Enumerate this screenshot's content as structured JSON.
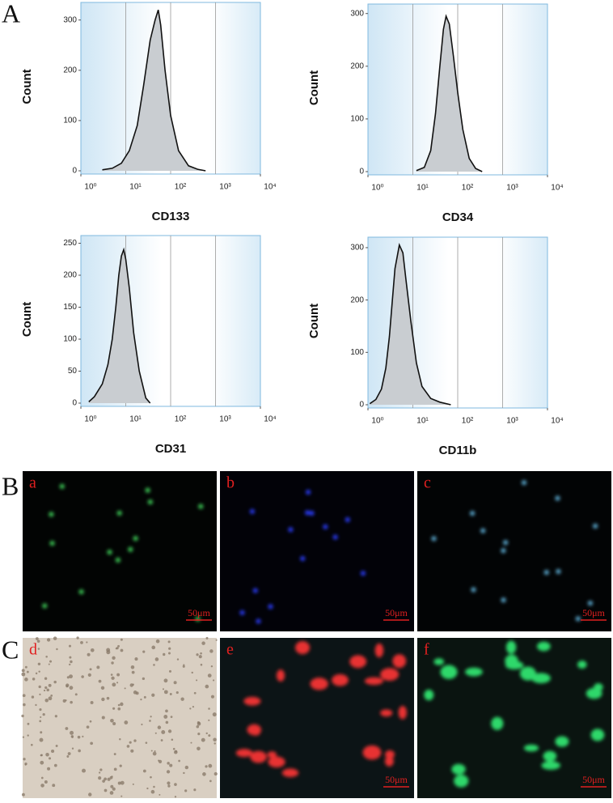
{
  "chart_data": [
    {
      "type": "area",
      "xlabel": "CD133",
      "ylabel": "Count",
      "log_x": true,
      "color": "#c9cdd1",
      "x": [
        3,
        5,
        8,
        12,
        18,
        25,
        35,
        45,
        53,
        60,
        75,
        100,
        150,
        250,
        400,
        600
      ],
      "values": [
        2,
        5,
        15,
        40,
        90,
        170,
        260,
        300,
        320,
        290,
        200,
        110,
        40,
        10,
        3,
        0
      ],
      "xlim": [
        1,
        10000
      ],
      "xticks": [
        {
          "value": 1,
          "label": "10⁰"
        },
        {
          "value": 10,
          "label": "10¹"
        },
        {
          "value": 100,
          "label": "10²"
        },
        {
          "value": 1000,
          "label": "10³"
        },
        {
          "value": 10000,
          "label": "10⁴"
        }
      ],
      "ylim": [
        0,
        335
      ],
      "yticks": [
        0,
        100,
        200,
        300
      ]
    },
    {
      "type": "area",
      "xlabel": "CD34",
      "ylabel": "Count",
      "log_x": true,
      "color": "#c9cdd1",
      "x": [
        12,
        18,
        25,
        32,
        40,
        48,
        55,
        65,
        80,
        100,
        130,
        180,
        250,
        350
      ],
      "values": [
        2,
        8,
        40,
        110,
        200,
        270,
        295,
        280,
        220,
        150,
        80,
        25,
        6,
        0
      ],
      "xlim": [
        1,
        10000
      ],
      "xticks": [
        {
          "value": 1,
          "label": "10⁰"
        },
        {
          "value": 10,
          "label": "10¹"
        },
        {
          "value": 100,
          "label": "10²"
        },
        {
          "value": 1000,
          "label": "10³"
        },
        {
          "value": 10000,
          "label": "10⁴"
        }
      ],
      "ylim": [
        0,
        318
      ],
      "yticks": [
        0,
        100,
        200,
        300
      ]
    },
    {
      "type": "area",
      "xlabel": "CD31",
      "ylabel": "Count",
      "log_x": true,
      "color": "#c9cdd1",
      "x": [
        1.5,
        2,
        3,
        4,
        5,
        6,
        7,
        8,
        9,
        10,
        12,
        15,
        20,
        28,
        35
      ],
      "values": [
        2,
        10,
        30,
        60,
        100,
        150,
        200,
        230,
        240,
        225,
        180,
        110,
        50,
        8,
        0
      ],
      "xlim": [
        1,
        10000
      ],
      "xticks": [
        {
          "value": 1,
          "label": "10⁰"
        },
        {
          "value": 10,
          "label": "10¹"
        },
        {
          "value": 100,
          "label": "10²"
        },
        {
          "value": 1000,
          "label": "10³"
        },
        {
          "value": 10000,
          "label": "10⁴"
        }
      ],
      "ylim": [
        0,
        262
      ],
      "yticks": [
        0,
        50,
        100,
        150,
        200,
        250
      ]
    },
    {
      "type": "area",
      "xlabel": "CD11b",
      "ylabel": "Count",
      "log_x": true,
      "color": "#c9cdd1",
      "x": [
        1.1,
        1.5,
        2,
        2.5,
        3,
        3.5,
        4,
        5,
        6,
        7,
        9,
        12,
        16,
        25,
        40,
        70
      ],
      "values": [
        2,
        10,
        30,
        70,
        130,
        200,
        260,
        305,
        290,
        240,
        160,
        80,
        35,
        12,
        5,
        0
      ],
      "xlim": [
        1,
        10000
      ],
      "xticks": [
        {
          "value": 1,
          "label": "10⁰"
        },
        {
          "value": 10,
          "label": "10¹"
        },
        {
          "value": 100,
          "label": "10²"
        },
        {
          "value": 1000,
          "label": "10³"
        },
        {
          "value": 10000,
          "label": "10⁴"
        }
      ],
      "ylim": [
        0,
        320
      ],
      "yticks": [
        0,
        100,
        200,
        300
      ]
    }
  ],
  "panels": [
    "A",
    "B",
    "C"
  ],
  "images": [
    {
      "label": "a",
      "scale_bar": "50μm"
    },
    {
      "label": "b",
      "scale_bar": "50μm"
    },
    {
      "label": "c",
      "scale_bar": "50μm"
    },
    {
      "label": "d"
    },
    {
      "label": "e",
      "scale_bar": "50μm"
    },
    {
      "label": "f",
      "scale_bar": "50μm"
    }
  ]
}
